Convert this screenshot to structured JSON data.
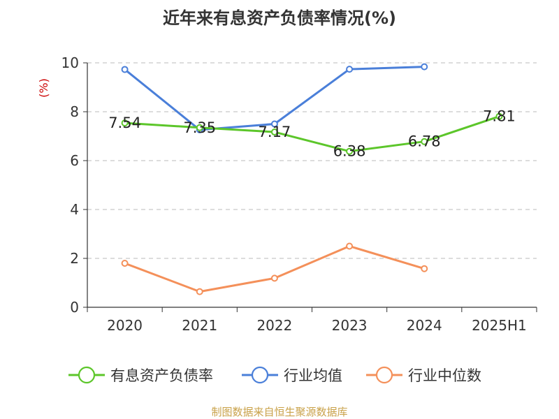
{
  "chart_data": {
    "type": "line",
    "title": "近年来有息资产负债率情况(%)",
    "ylabel": "(%)",
    "ylim": [
      0,
      10
    ],
    "yticks": [
      0,
      2,
      4,
      6,
      8,
      10
    ],
    "categories": [
      "2020",
      "2021",
      "2022",
      "2023",
      "2024",
      "2025H1"
    ],
    "grid": true,
    "legend_position": "bottom",
    "series": [
      {
        "name": "有息资产负债率",
        "color": "#5cc62a",
        "values": [
          7.54,
          7.35,
          7.17,
          6.38,
          6.78,
          7.81
        ],
        "labels": [
          "7.54",
          "7.35",
          "7.17",
          "6.38",
          "6.78",
          "7.81"
        ]
      },
      {
        "name": "行业均值",
        "color": "#4a7fd9",
        "values": [
          9.73,
          7.26,
          7.5,
          9.74,
          9.84,
          null
        ]
      },
      {
        "name": "行业中位数",
        "color": "#f4905a",
        "values": [
          1.8,
          0.64,
          1.19,
          2.5,
          1.58,
          null
        ]
      }
    ],
    "ylabel_color": "#cc0000",
    "source": "制图数据来自恒生聚源数据库",
    "source_color": "#c9a24a"
  }
}
